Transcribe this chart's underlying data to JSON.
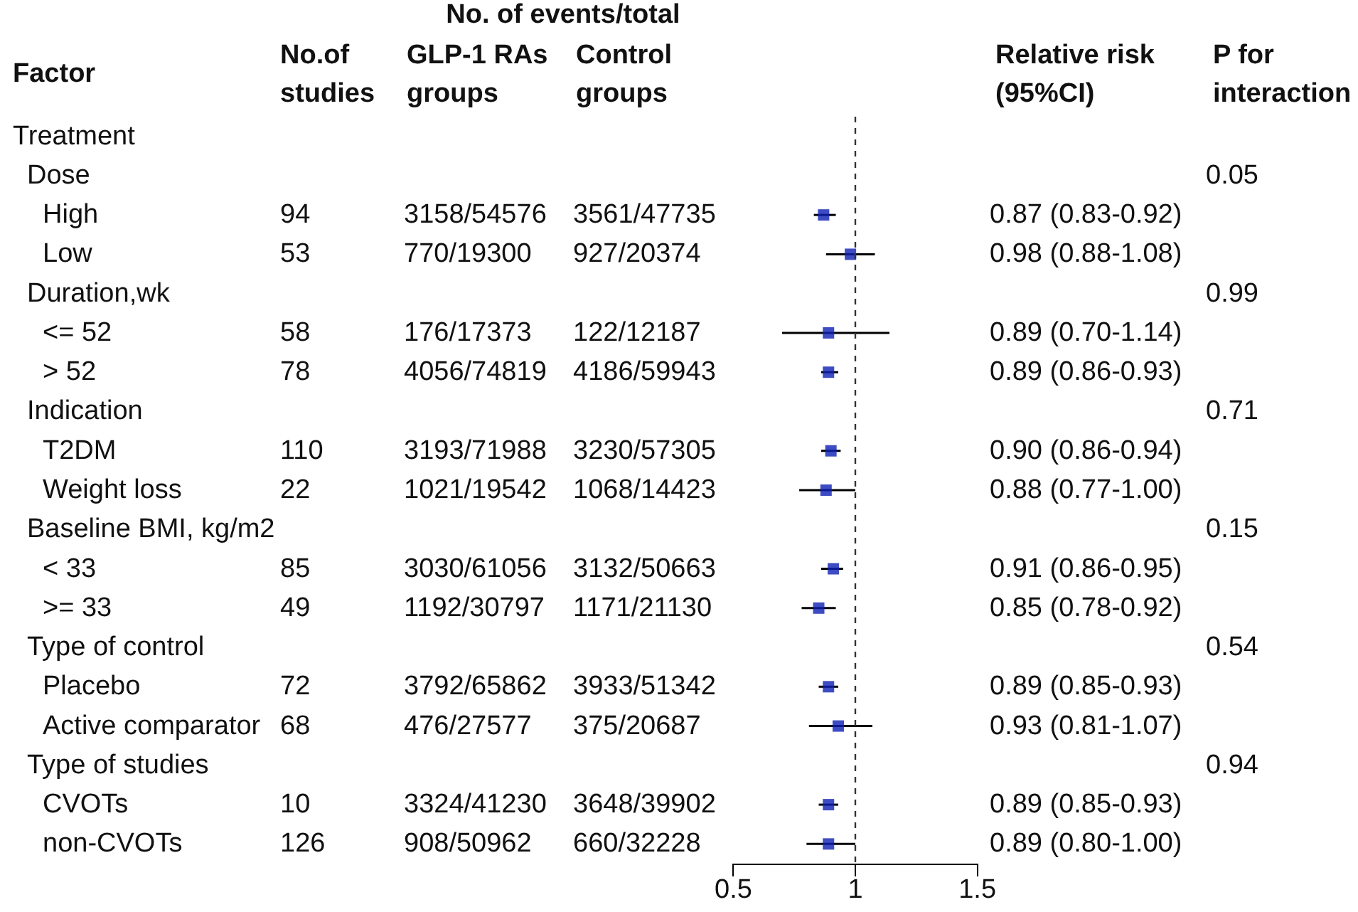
{
  "chart_data": {
    "type": "scatter",
    "orientation": "horizontal",
    "marker": "square",
    "color": "#0e1fb4",
    "tick_labels": "x",
    "categories": [
      null,
      null,
      null,
      null,
      null,
      null,
      null,
      null,
      null,
      null,
      null,
      null,
      null,
      null,
      null,
      null,
      null,
      null,
      null
    ],
    "values": [
      null,
      null,
      0.87,
      0.98,
      null,
      0.89,
      0.89,
      null,
      0.9,
      0.88,
      null,
      0.91,
      0.85,
      null,
      0.89,
      0.93,
      null,
      0.89,
      0.89
    ],
    "errors": [
      null,
      null,
      [
        0.83,
        0.92
      ],
      [
        0.88,
        1.08
      ],
      null,
      [
        0.7,
        1.14
      ],
      [
        0.86,
        0.93
      ],
      null,
      [
        0.86,
        0.94
      ],
      [
        0.77,
        1.0
      ],
      null,
      [
        0.86,
        0.95
      ],
      [
        0.78,
        0.92
      ],
      null,
      [
        0.85,
        0.93
      ],
      [
        0.81,
        1.07
      ],
      null,
      [
        0.85,
        0.93
      ],
      [
        0.8,
        1.0
      ]
    ],
    "value_labels": [
      null,
      null,
      "0.87 (0.83-0.92)",
      "0.98 (0.88-1.08)",
      null,
      "0.89 (0.70-1.14)",
      "0.89 (0.86-0.93)",
      null,
      "0.90 (0.86-0.94)",
      "0.88 (0.77-1.00)",
      null,
      "0.91 (0.86-0.95)",
      "0.85 (0.78-0.92)",
      null,
      "0.89 (0.85-0.93)",
      "0.93 (0.81-1.07)",
      null,
      "0.89 (0.85-0.93)",
      "0.89 (0.80-1.00)"
    ],
    "xlim": [
      0.5,
      1.5
    ],
    "xticks": [
      0.5,
      1,
      1.5
    ],
    "ref_lines": [
      {
        "axis": "x",
        "value": 1,
        "line_style": "dashed"
      }
    ],
    "annotations": [
      "Factor",
      "No.of studies",
      "No. of events/total",
      "GLP-1 RAs groups",
      "Control groups",
      "Relative risk (95%CI)",
      "P for interaction",
      "Treatment",
      "Dose",
      "0.05",
      "High",
      "94",
      "3158/54576",
      "3561/47735",
      "Low",
      "53",
      "770/19300",
      "927/20374",
      "Duration,wk",
      "0.99",
      "<= 52",
      "58",
      "176/17373",
      "122/12187",
      "> 52",
      "78",
      "4056/74819",
      "4186/59943",
      "Indication",
      "0.71",
      "T2DM",
      "110",
      "3193/71988",
      "3230/57305",
      "Weight loss",
      "22",
      "1021/19542",
      "1068/14423",
      "Baseline BMI, kg/m2",
      "0.15",
      "< 33",
      "85",
      "3030/61056",
      "3132/50663",
      ">= 33",
      "49",
      "1192/30797",
      "1171/21130",
      "Type of control",
      "0.54",
      "Placebo",
      "72",
      "3792/65862",
      "3933/51342",
      "Active comparator",
      "68",
      "476/27577",
      "375/20687",
      "Type of studies",
      "0.94",
      "CVOTs",
      "10",
      "3324/41230",
      "3648/39902",
      "non-CVOTs",
      "126",
      "908/50962",
      "660/32228"
    ]
  }
}
